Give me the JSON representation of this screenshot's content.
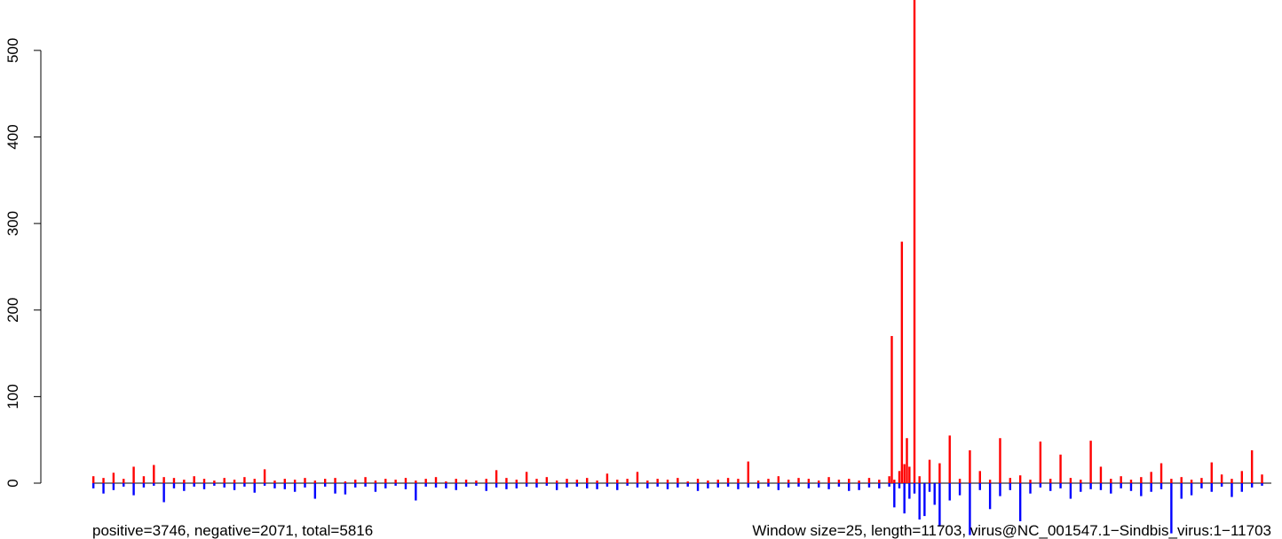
{
  "chart_data": {
    "type": "bar",
    "title": "",
    "xlabel": "",
    "ylabel": "",
    "ylim": [
      -60,
      560
    ],
    "xlim": [
      0,
      11703
    ],
    "y_ticks": [
      0,
      100,
      200,
      300,
      400,
      500
    ],
    "y_tick_labels": [
      "0",
      "100",
      "200",
      "300",
      "400",
      "500"
    ],
    "window_size": 25,
    "series": [
      {
        "name": "positive",
        "color": "#ff0000",
        "x": [
          0,
          100,
          200,
          300,
          400,
          500,
          600,
          700,
          800,
          900,
          1000,
          1100,
          1200,
          1300,
          1400,
          1500,
          1600,
          1700,
          1800,
          1900,
          2000,
          2100,
          2200,
          2300,
          2400,
          2500,
          2600,
          2700,
          2800,
          2900,
          3000,
          3100,
          3200,
          3300,
          3400,
          3500,
          3600,
          3700,
          3800,
          3900,
          4000,
          4100,
          4200,
          4300,
          4400,
          4500,
          4600,
          4700,
          4800,
          4900,
          5000,
          5100,
          5200,
          5300,
          5400,
          5500,
          5600,
          5700,
          5800,
          5900,
          6000,
          6100,
          6200,
          6300,
          6400,
          6500,
          6600,
          6700,
          6800,
          6900,
          7000,
          7100,
          7200,
          7300,
          7400,
          7500,
          7600,
          7700,
          7800,
          7900,
          7925,
          7950,
          8000,
          8025,
          8050,
          8075,
          8100,
          8150,
          8200,
          8300,
          8400,
          8500,
          8600,
          8700,
          8800,
          8900,
          9000,
          9100,
          9200,
          9300,
          9400,
          9500,
          9600,
          9700,
          9800,
          9900,
          10000,
          10100,
          10200,
          10300,
          10400,
          10500,
          10600,
          10700,
          10800,
          10900,
          11000,
          11100,
          11200,
          11300,
          11400,
          11500,
          11600
        ],
        "values": [
          8,
          6,
          12,
          5,
          19,
          8,
          21,
          7,
          6,
          4,
          8,
          5,
          3,
          6,
          4,
          7,
          5,
          16,
          3,
          5,
          4,
          6,
          3,
          5,
          6,
          2,
          4,
          7,
          3,
          5,
          4,
          6,
          3,
          5,
          7,
          2,
          5,
          4,
          3,
          5,
          15,
          6,
          4,
          13,
          5,
          7,
          3,
          5,
          4,
          6,
          3,
          11,
          4,
          5,
          13,
          3,
          5,
          4,
          6,
          2,
          5,
          3,
          4,
          6,
          5,
          25,
          3,
          5,
          8,
          4,
          6,
          5,
          3,
          7,
          4,
          5,
          3,
          6,
          4,
          8,
          170,
          4,
          14,
          279,
          22,
          52,
          19,
          567,
          8,
          27,
          23,
          55,
          5,
          38,
          14,
          4,
          52,
          6,
          9,
          4,
          48,
          5,
          33,
          6,
          4,
          49,
          19,
          5,
          8,
          4,
          7,
          13,
          23,
          5,
          7,
          4,
          6,
          24,
          10,
          5,
          14,
          38,
          10
        ]
      },
      {
        "name": "negative",
        "color": "#0000ff",
        "x": [
          0,
          100,
          200,
          300,
          400,
          500,
          600,
          700,
          800,
          900,
          1000,
          1100,
          1200,
          1300,
          1400,
          1500,
          1600,
          1700,
          1800,
          1900,
          2000,
          2100,
          2200,
          2300,
          2400,
          2500,
          2600,
          2700,
          2800,
          2900,
          3000,
          3100,
          3200,
          3300,
          3400,
          3500,
          3600,
          3700,
          3800,
          3900,
          4000,
          4100,
          4200,
          4300,
          4400,
          4500,
          4600,
          4700,
          4800,
          4900,
          5000,
          5100,
          5200,
          5300,
          5400,
          5500,
          5600,
          5700,
          5800,
          5900,
          6000,
          6100,
          6200,
          6300,
          6400,
          6500,
          6600,
          6700,
          6800,
          6900,
          7000,
          7100,
          7200,
          7300,
          7400,
          7500,
          7600,
          7700,
          7800,
          7900,
          7950,
          8000,
          8050,
          8100,
          8150,
          8200,
          8250,
          8300,
          8350,
          8400,
          8500,
          8600,
          8700,
          8800,
          8900,
          9000,
          9100,
          9200,
          9300,
          9400,
          9500,
          9600,
          9700,
          9800,
          9900,
          10000,
          10100,
          10200,
          10300,
          10400,
          10500,
          10600,
          10700,
          10800,
          10900,
          11000,
          11100,
          11200,
          11300,
          11400,
          11500,
          11600
        ],
        "values": [
          -6,
          -12,
          -8,
          -4,
          -14,
          -5,
          -3,
          -22,
          -6,
          -9,
          -4,
          -7,
          -3,
          -5,
          -8,
          -4,
          -11,
          -3,
          -6,
          -7,
          -10,
          -5,
          -18,
          -4,
          -12,
          -13,
          -5,
          -4,
          -10,
          -6,
          -3,
          -7,
          -20,
          -4,
          -5,
          -6,
          -8,
          -4,
          -3,
          -9,
          -5,
          -7,
          -6,
          -4,
          -5,
          -3,
          -8,
          -5,
          -4,
          -6,
          -7,
          -4,
          -8,
          -3,
          -5,
          -6,
          -4,
          -7,
          -5,
          -4,
          -9,
          -6,
          -5,
          -4,
          -7,
          -5,
          -6,
          -4,
          -8,
          -5,
          -4,
          -6,
          -5,
          -7,
          -4,
          -9,
          -8,
          -5,
          -6,
          -4,
          -28,
          -6,
          -35,
          -18,
          -12,
          -42,
          -38,
          -10,
          -25,
          -50,
          -20,
          -14,
          -60,
          -8,
          -30,
          -15,
          -8,
          -44,
          -12,
          -5,
          -9,
          -6,
          -18,
          -10,
          -7,
          -8,
          -12,
          -6,
          -9,
          -15,
          -10,
          -7,
          -58,
          -18,
          -14,
          -6,
          -10,
          -4,
          -16,
          -10,
          -5,
          -3
        ]
      }
    ],
    "footer_left": "positive=3746, negative=2071, total=5816",
    "footer_right": "Window size=25, length=11703, virus@NC_001547.1−Sindbis_virus:1−11703"
  }
}
